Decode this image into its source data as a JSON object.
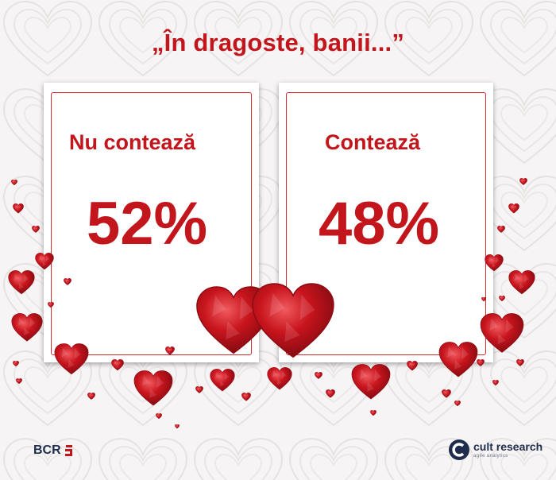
{
  "title": "„În dragoste, banii...”",
  "cards": [
    {
      "label": "Nu contează",
      "value": "52%"
    },
    {
      "label": "Contează",
      "value": "48%"
    }
  ],
  "logos": {
    "left": "BCR",
    "right_name": "cult research",
    "right_tagline": "agile analytics"
  },
  "colors": {
    "accent_red": "#c3161c",
    "heart_red": "#c21a22",
    "background": "#f6f4f4",
    "card": "#ffffff",
    "logo_navy": "#1f2d4d"
  },
  "icons": [
    "heart-icon",
    "bcr-logo-icon",
    "cult-research-logo-icon"
  ]
}
